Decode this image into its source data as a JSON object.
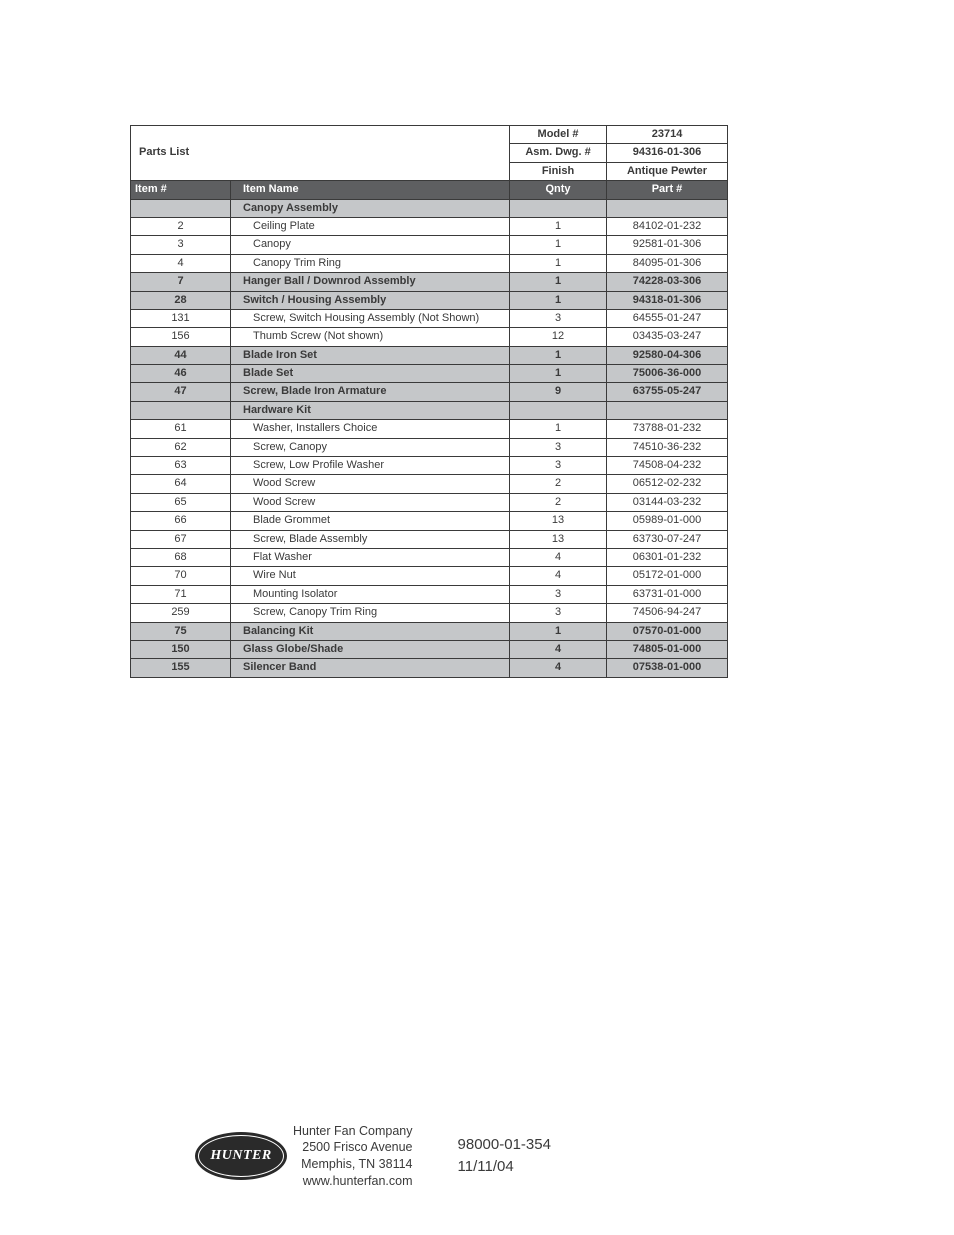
{
  "title": "Parts List",
  "meta": {
    "model_label": "Model #",
    "model_value": "23714",
    "asm_label": "Asm. Dwg. #",
    "asm_value": "94316-01-306",
    "finish_label": "Finish",
    "finish_value": "Antique Pewter"
  },
  "headers": {
    "item": "Item #",
    "name": "Item Name",
    "qnty": "Qnty",
    "part": "Part #"
  },
  "rows": [
    {
      "type": "gray-section",
      "item": "",
      "name": "Canopy Assembly",
      "qnty": "",
      "part": ""
    },
    {
      "type": "detail",
      "item": "2",
      "name": "Ceiling Plate",
      "qnty": "1",
      "part": "84102-01-232"
    },
    {
      "type": "detail",
      "item": "3",
      "name": "Canopy",
      "qnty": "1",
      "part": "92581-01-306"
    },
    {
      "type": "detail",
      "item": "4",
      "name": "Canopy Trim Ring",
      "qnty": "1",
      "part": "84095-01-306"
    },
    {
      "type": "gray",
      "item": "7",
      "name": "Hanger Ball / Downrod Assembly",
      "qnty": "1",
      "part": "74228-03-306"
    },
    {
      "type": "gray",
      "item": "28",
      "name": "Switch / Housing Assembly",
      "qnty": "1",
      "part": "94318-01-306"
    },
    {
      "type": "detail",
      "item": "131",
      "name": "Screw, Switch Housing Assembly (Not Shown)",
      "qnty": "3",
      "part": "64555-01-247"
    },
    {
      "type": "detail",
      "item": "156",
      "name": "Thumb Screw (Not shown)",
      "qnty": "12",
      "part": "03435-03-247"
    },
    {
      "type": "gray",
      "item": "44",
      "name": "Blade Iron Set",
      "qnty": "1",
      "part": "92580-04-306"
    },
    {
      "type": "gray",
      "item": "46",
      "name": "Blade Set",
      "qnty": "1",
      "part": "75006-36-000"
    },
    {
      "type": "gray",
      "item": "47",
      "name": "Screw, Blade Iron Armature",
      "qnty": "9",
      "part": "63755-05-247"
    },
    {
      "type": "gray-section",
      "item": "",
      "name": "Hardware Kit",
      "qnty": "",
      "part": ""
    },
    {
      "type": "detail",
      "item": "61",
      "name": "Washer, Installers Choice",
      "qnty": "1",
      "part": "73788-01-232"
    },
    {
      "type": "detail",
      "item": "62",
      "name": "Screw, Canopy",
      "qnty": "3",
      "part": "74510-36-232"
    },
    {
      "type": "detail",
      "item": "63",
      "name": "Screw, Low Profile Washer",
      "qnty": "3",
      "part": "74508-04-232"
    },
    {
      "type": "detail",
      "item": "64",
      "name": "Wood Screw",
      "qnty": "2",
      "part": "06512-02-232"
    },
    {
      "type": "detail",
      "item": "65",
      "name": "Wood Screw",
      "qnty": "2",
      "part": "03144-03-232"
    },
    {
      "type": "detail",
      "item": "66",
      "name": "Blade Grommet",
      "qnty": "13",
      "part": "05989-01-000"
    },
    {
      "type": "detail",
      "item": "67",
      "name": "Screw, Blade Assembly",
      "qnty": "13",
      "part": "63730-07-247"
    },
    {
      "type": "detail",
      "item": "68",
      "name": "Flat Washer",
      "qnty": "4",
      "part": "06301-01-232"
    },
    {
      "type": "detail",
      "item": "70",
      "name": "Wire Nut",
      "qnty": "4",
      "part": "05172-01-000"
    },
    {
      "type": "detail",
      "item": "71",
      "name": "Mounting Isolator",
      "qnty": "3",
      "part": "63731-01-000"
    },
    {
      "type": "detail",
      "item": "259",
      "name": "Screw, Canopy Trim Ring",
      "qnty": "3",
      "part": "74506-94-247"
    },
    {
      "type": "gray",
      "item": "75",
      "name": "Balancing Kit",
      "qnty": "1",
      "part": "07570-01-000"
    },
    {
      "type": "gray",
      "item": "150",
      "name": "Glass Globe/Shade",
      "qnty": "4",
      "part": "74805-01-000"
    },
    {
      "type": "gray",
      "item": "155",
      "name": "Silencer Band",
      "qnty": "4",
      "part": "07538-01-000"
    }
  ],
  "footer": {
    "logo_text": "HUNTER",
    "company_line1": "Hunter Fan Company",
    "company_line2": "2500 Frisco Avenue",
    "company_line3": "Memphis, TN 38114",
    "company_line4": "www.hunterfan.com",
    "doc_number": "98000-01-354",
    "doc_date": "11/11/04"
  },
  "colors": {
    "dark_header": "#5e5f61",
    "gray_row": "#c5c7c9",
    "text": "#3a3a3a",
    "border": "#3a3a3a"
  }
}
